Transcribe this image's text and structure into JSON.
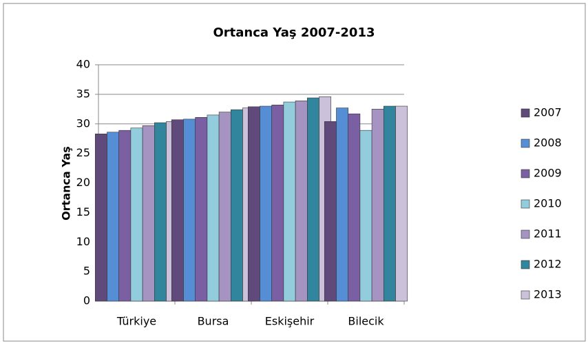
{
  "chart_data": {
    "type": "bar",
    "title": "Ortanca Yaş 2007-2013",
    "y_label": "Ortanca Yaş",
    "categories": [
      "Türkiye",
      "Bursa",
      "Eskişehir",
      "Bilecik"
    ],
    "series": [
      {
        "name": "2007",
        "color": "#604a7b",
        "values": [
          28.3,
          30.7,
          32.9,
          30.4
        ]
      },
      {
        "name": "2008",
        "color": "#558ed5",
        "values": [
          28.6,
          30.8,
          33.0,
          32.7
        ]
      },
      {
        "name": "2009",
        "color": "#7b5fa3",
        "values": [
          28.9,
          31.1,
          33.2,
          31.7
        ]
      },
      {
        "name": "2010",
        "color": "#93cddd",
        "values": [
          29.3,
          31.5,
          33.7,
          28.9
        ]
      },
      {
        "name": "2011",
        "color": "#a593c2",
        "values": [
          29.7,
          32.0,
          33.9,
          32.5
        ]
      },
      {
        "name": "2012",
        "color": "#31859c",
        "values": [
          30.2,
          32.4,
          34.4,
          33.0
        ]
      },
      {
        "name": "2013",
        "color": "#ccc1da",
        "values": [
          30.4,
          32.7,
          34.6,
          33.0
        ]
      }
    ],
    "ylim": [
      0,
      40
    ],
    "yticks": [
      0,
      5,
      10,
      15,
      20,
      25,
      30,
      35,
      40
    ],
    "grid": true,
    "legend": "right"
  }
}
